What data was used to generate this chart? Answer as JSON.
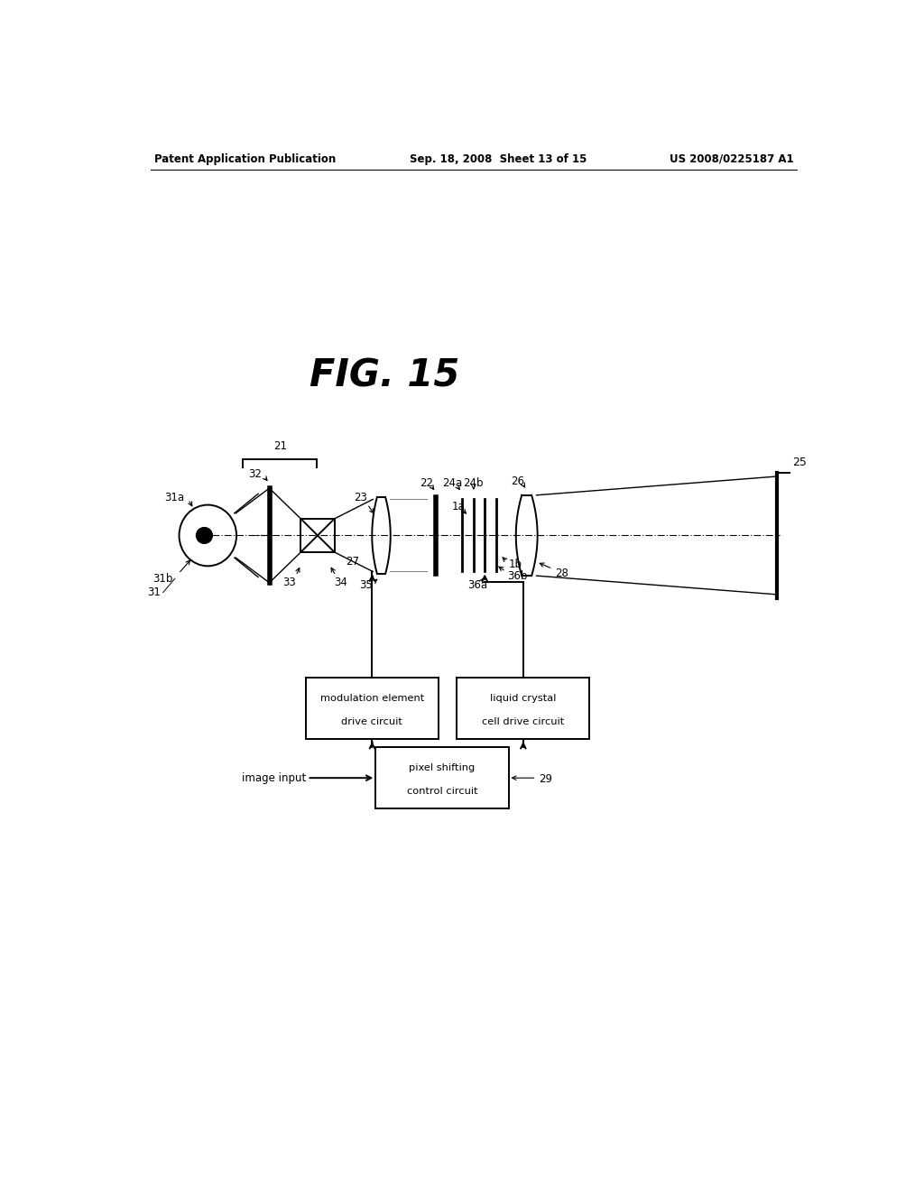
{
  "bg_color": "#ffffff",
  "line_color": "#000000",
  "header_left": "Patent Application Publication",
  "header_mid": "Sep. 18, 2008  Sheet 13 of 15",
  "header_right": "US 2008/0225187 A1",
  "fig_title": "FIG. 15",
  "OY": 7.55
}
